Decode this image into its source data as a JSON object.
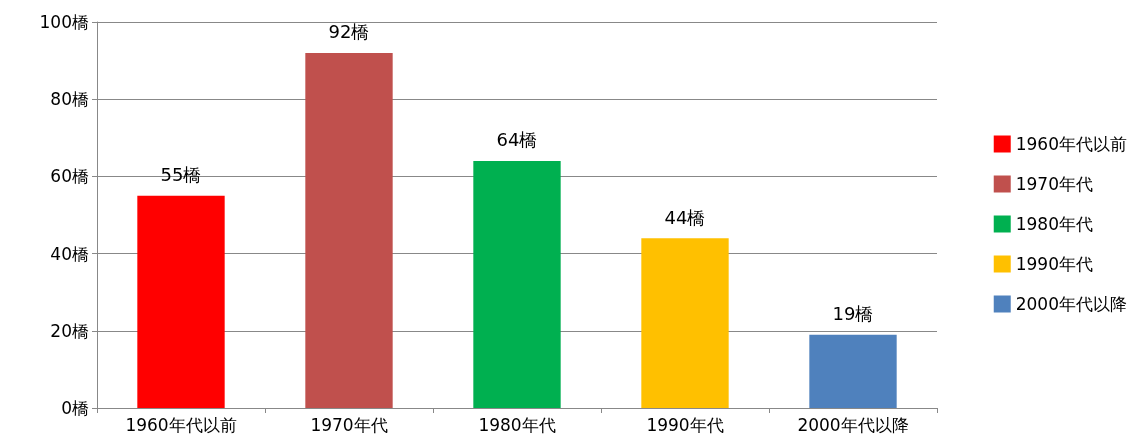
{
  "chart_data": {
    "type": "bar",
    "categories": [
      "1960年代以前",
      "1970年代",
      "1980年代",
      "1990年代",
      "2000年代以降"
    ],
    "series": [
      {
        "name": "1960年代以前",
        "color": "#ff0000",
        "values": [
          55,
          null,
          null,
          null,
          null
        ],
        "value_labels": [
          "55橋",
          null,
          null,
          null,
          null
        ]
      },
      {
        "name": "1970年代",
        "color": "#c0504d",
        "values": [
          null,
          92,
          null,
          null,
          null
        ],
        "value_labels": [
          null,
          "92橋",
          null,
          null,
          null
        ]
      },
      {
        "name": "1980年代",
        "color": "#00b050",
        "values": [
          null,
          null,
          64,
          null,
          null
        ],
        "value_labels": [
          null,
          null,
          "64橋",
          null,
          null
        ]
      },
      {
        "name": "1990年代",
        "color": "#ffc000",
        "values": [
          null,
          null,
          null,
          44,
          null
        ],
        "value_labels": [
          null,
          null,
          null,
          "44橋",
          null
        ]
      },
      {
        "name": "2000年代以降",
        "color": "#4f81bd",
        "values": [
          null,
          null,
          null,
          null,
          19
        ],
        "value_labels": [
          null,
          null,
          null,
          null,
          "19橋"
        ]
      }
    ],
    "stacked": true,
    "ylim": [
      0,
      100
    ],
    "yticks": [
      {
        "value": 0,
        "label": "0橋"
      },
      {
        "value": 20,
        "label": "20橋"
      },
      {
        "value": 40,
        "label": "40橋"
      },
      {
        "value": 60,
        "label": "60橋"
      },
      {
        "value": 80,
        "label": "80橋"
      },
      {
        "value": 100,
        "label": "100橋"
      }
    ],
    "grid": "y",
    "legend": "right"
  }
}
